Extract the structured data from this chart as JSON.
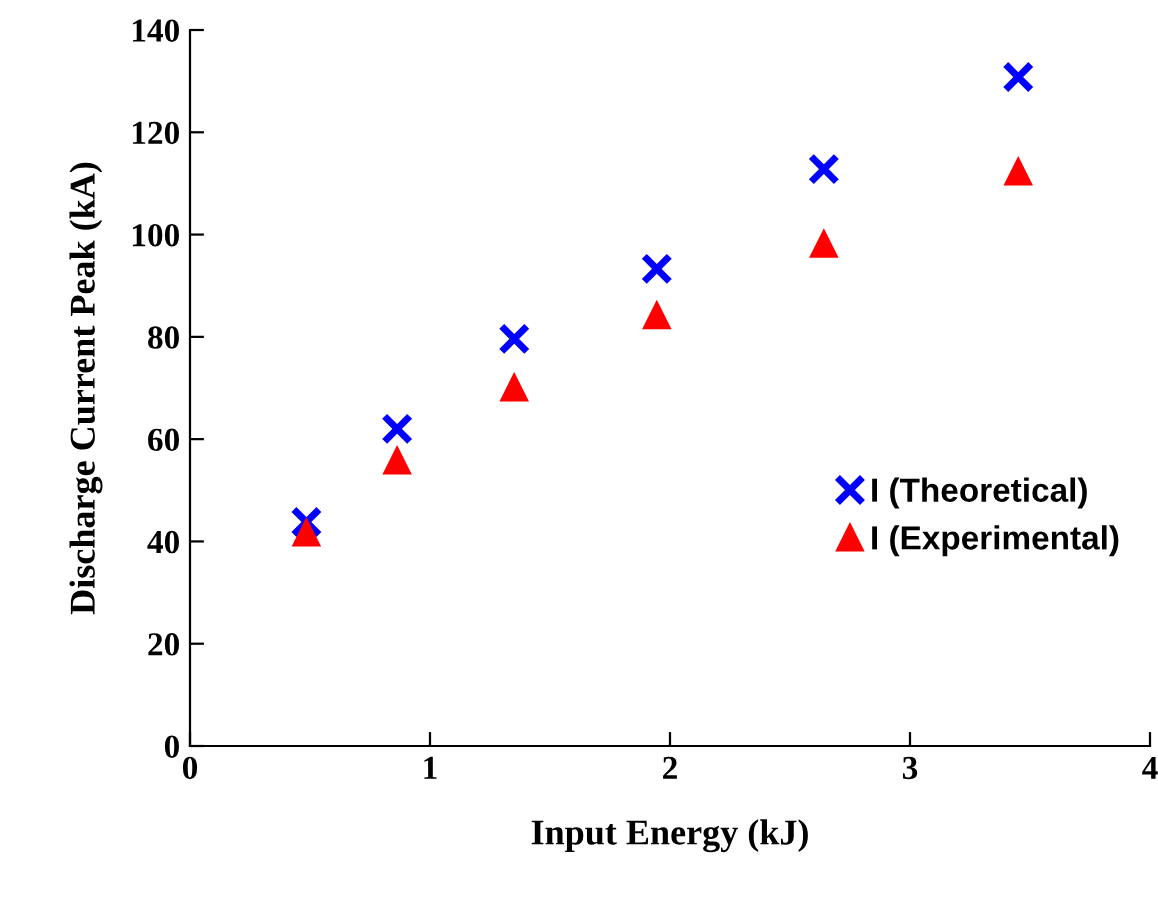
{
  "chart_data": {
    "type": "scatter",
    "xlabel": "Input Energy (kJ)",
    "ylabel": "Discharge Current Peak (kA)",
    "xlim": [
      0,
      4
    ],
    "xticks": [
      0,
      1,
      2,
      3,
      4
    ],
    "ylim": [
      0,
      140
    ],
    "yticks": [
      0,
      20,
      40,
      60,
      80,
      100,
      120,
      140
    ],
    "grid": false,
    "legend": "right",
    "series": [
      {
        "name": "I (Theoretical)",
        "color": "#0000ff",
        "marker": "cross",
        "x": [
          0.485,
          0.863,
          1.351,
          1.945,
          2.641,
          3.451
        ],
        "values": [
          43.8,
          62.0,
          79.6,
          93.3,
          112.8,
          130.8
        ]
      },
      {
        "name": "I (Experimental)",
        "color": "#ff0000",
        "marker": "triangle",
        "x": [
          0.485,
          0.863,
          1.351,
          1.945,
          2.641,
          3.451
        ],
        "values": [
          41.7,
          55.8,
          70.1,
          84.2,
          98.2,
          112.3
        ]
      }
    ]
  }
}
